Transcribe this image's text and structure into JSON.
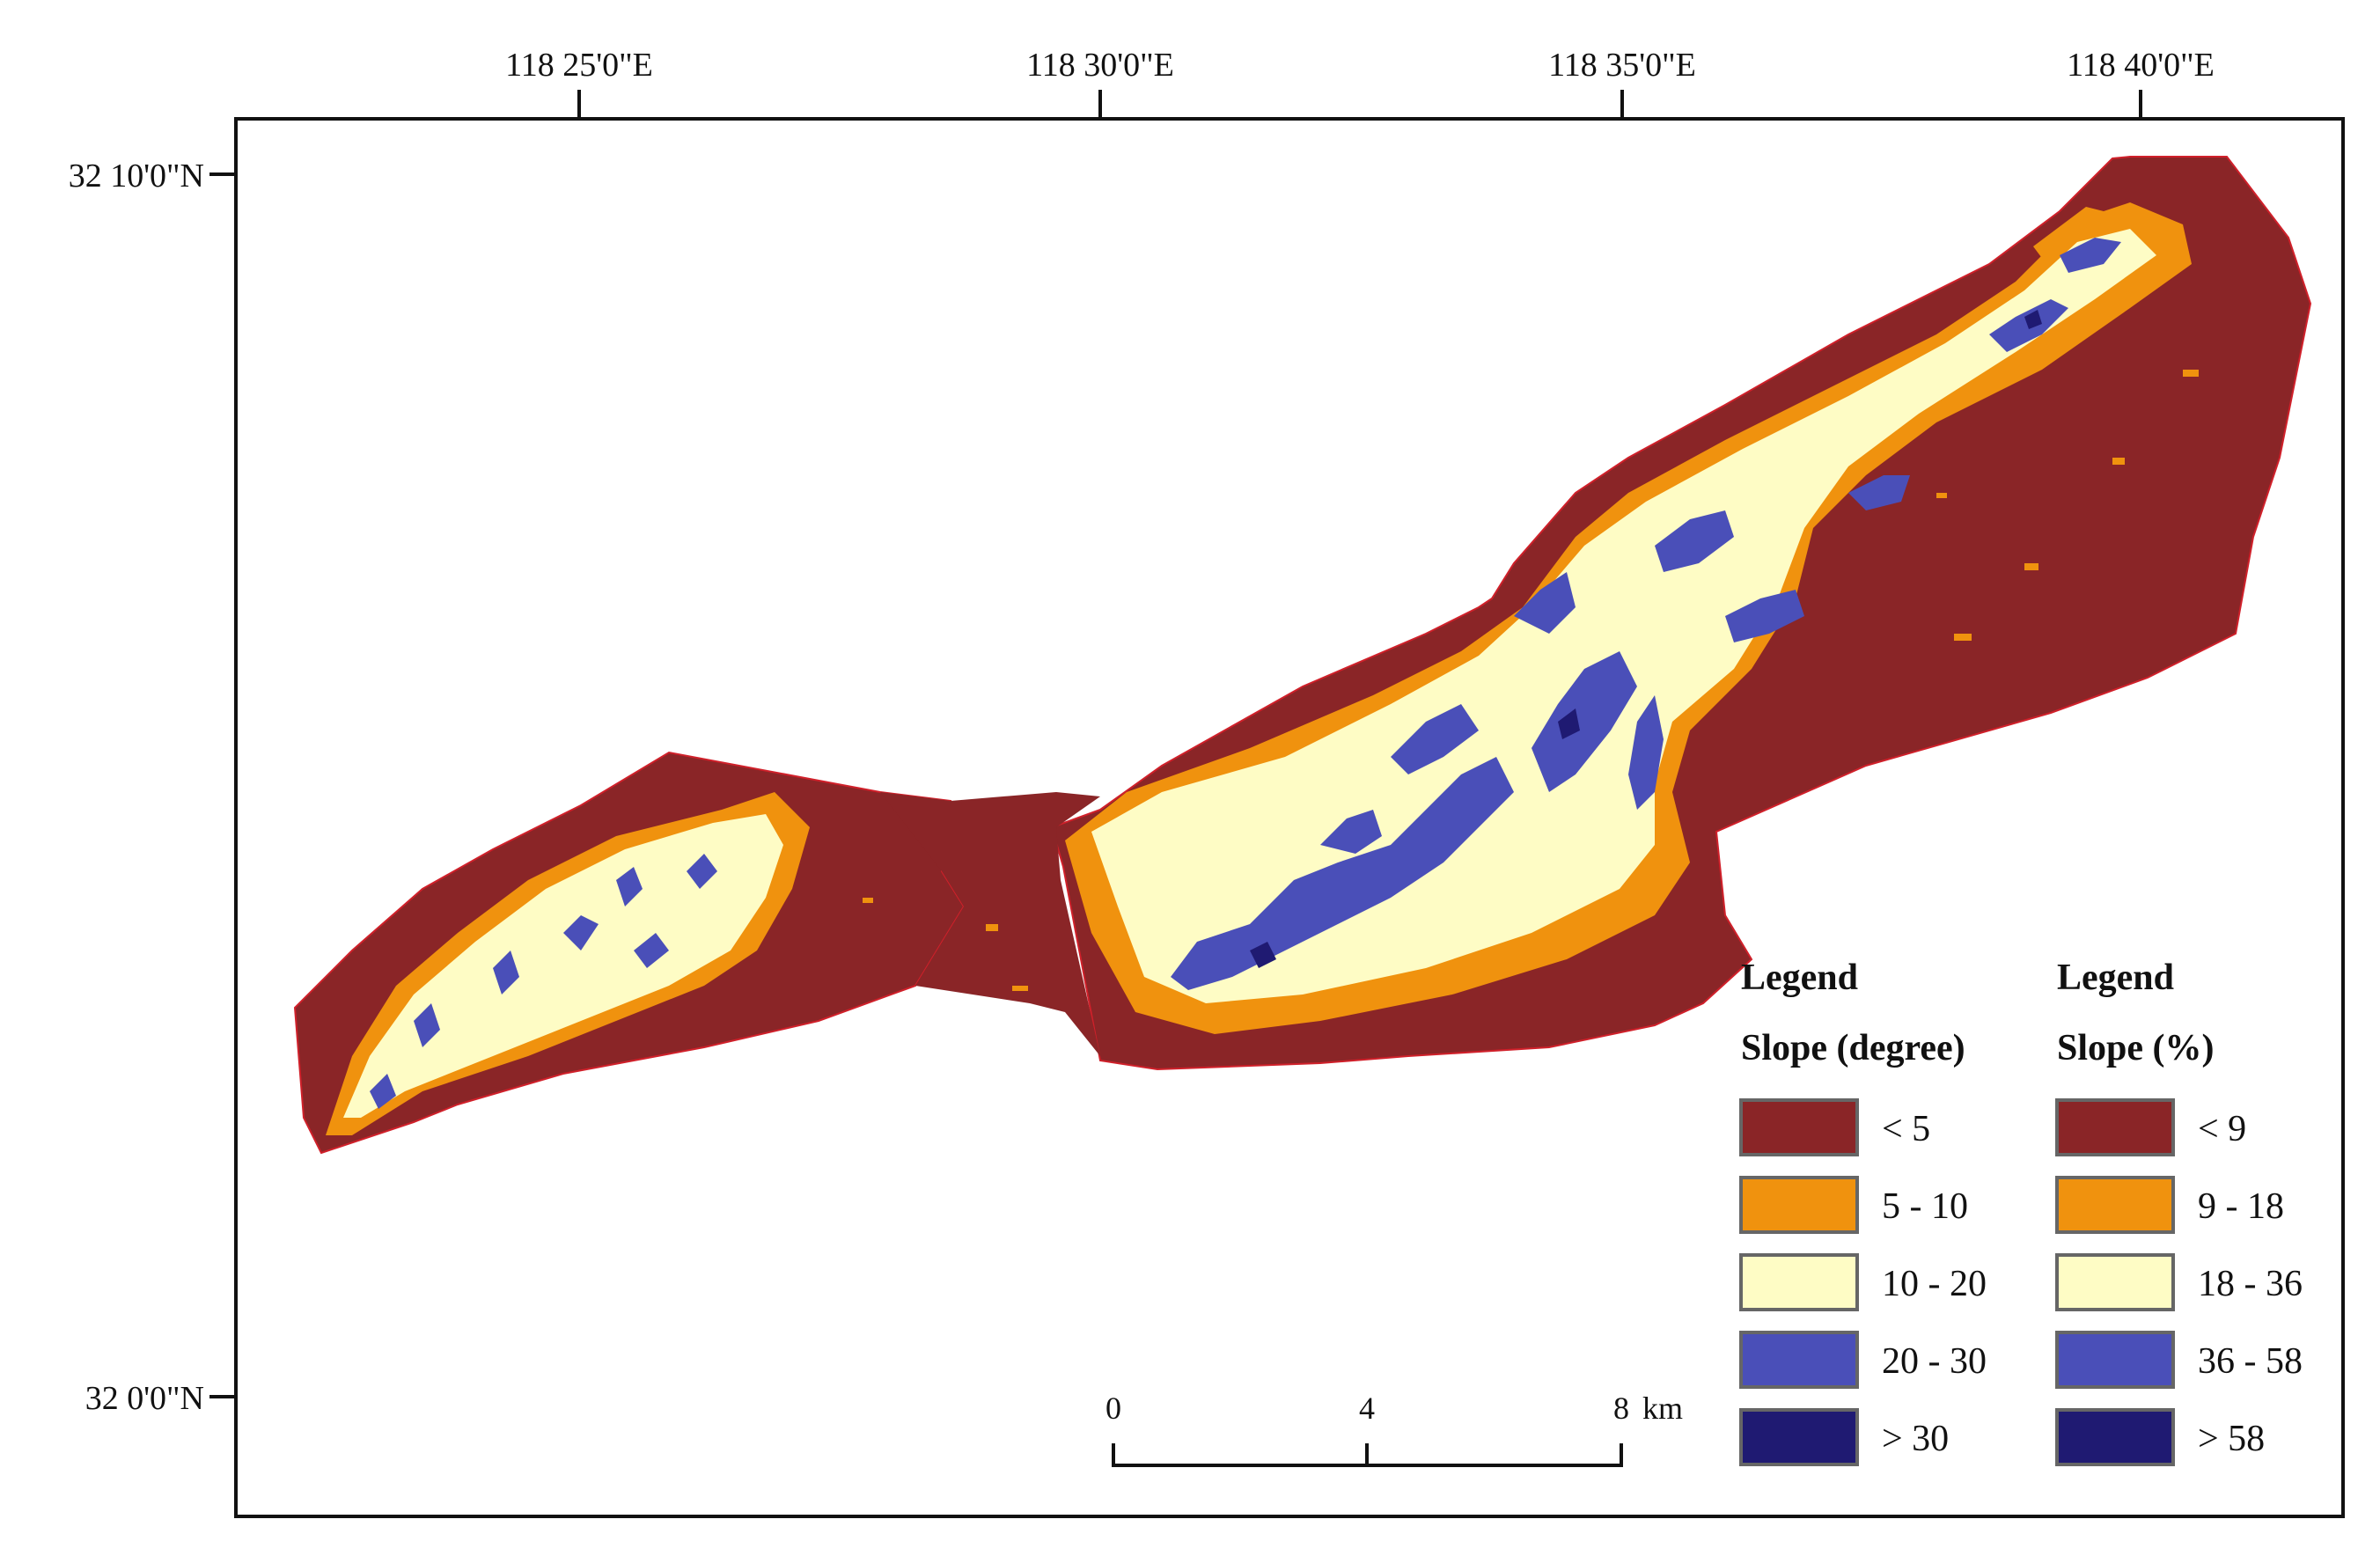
{
  "map": {
    "graticule": {
      "longitude_labels": [
        "118  25'0\"E",
        "118  30'0\"E",
        "118  35'0\"E",
        "118  40'0\"E"
      ],
      "latitude_labels": [
        "32  10'0\"N",
        "32  0'0\"N"
      ]
    },
    "classes": {
      "c1": "#8a2527",
      "c2": "#f0920e",
      "c3": "#fefcc5",
      "c4": "#4a4fb8",
      "c5": "#1f1a72"
    },
    "legend_degree": {
      "title": "Legend",
      "subtitle": "Slope (degree)",
      "items": [
        {
          "label": "< 5",
          "color": "#8a2527"
        },
        {
          "label": "5 - 10",
          "color": "#f0920e"
        },
        {
          "label": "10 - 20",
          "color": "#fefcc5"
        },
        {
          "label": "20 - 30",
          "color": "#4a4fb8"
        },
        {
          "label": "> 30",
          "color": "#1f1a72"
        }
      ]
    },
    "legend_percent": {
      "title": "Legend",
      "subtitle": "Slope (%)",
      "items": [
        {
          "label": "< 9",
          "color": "#8a2527"
        },
        {
          "label": "9 - 18",
          "color": "#f0920e"
        },
        {
          "label": "18 - 36",
          "color": "#fefcc5"
        },
        {
          "label": "36 - 58",
          "color": "#4a4fb8"
        },
        {
          "label": "> 58",
          "color": "#1f1a72"
        }
      ]
    },
    "scale_bar": {
      "labels": [
        "0",
        "4",
        "8"
      ],
      "unit": "km"
    }
  }
}
